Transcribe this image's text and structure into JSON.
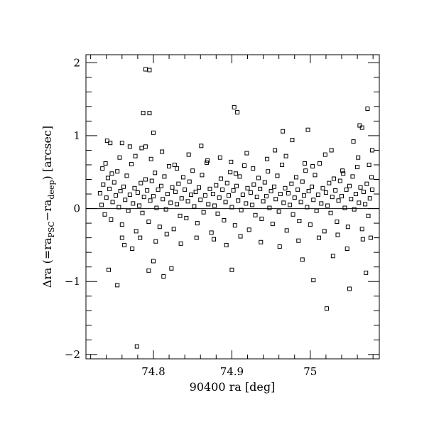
{
  "chart_data": {
    "type": "scatter",
    "title": "",
    "xlabel": "90400 ra [deg]",
    "ylabel": {
      "prefix": "Δra (=ra",
      "sub1": "PSC",
      "mid": "−ra",
      "sub2": "deep",
      "suffix": ") [arcsec]"
    },
    "xlim": [
      74.714,
      75.088
    ],
    "ylim": [
      -2.06,
      2.11
    ],
    "x_ticks": [
      {
        "value": 74.8,
        "label": "74.8"
      },
      {
        "value": 74.9,
        "label": "74.9"
      },
      {
        "value": 75.0,
        "label": "75"
      }
    ],
    "y_ticks": [
      {
        "value": -2,
        "label": "−2"
      },
      {
        "value": -1,
        "label": "−1"
      },
      {
        "value": 0,
        "label": "0"
      },
      {
        "value": 1,
        "label": "1"
      },
      {
        "value": 2,
        "label": "2"
      }
    ],
    "x_minor_step": 0.02,
    "y_minor_step": 0.2,
    "reference_line_y": 0,
    "marker": "open-square",
    "grid": false,
    "colors": {
      "marker": "#000000",
      "axes": "#000000",
      "background": "#ffffff"
    },
    "points": [
      [
        74.79,
        1.91
      ],
      [
        74.795,
        1.9
      ],
      [
        74.787,
        1.31
      ],
      [
        74.795,
        1.31
      ],
      [
        74.8,
        1.04
      ],
      [
        74.903,
        1.39
      ],
      [
        74.907,
        1.32
      ],
      [
        75.073,
        1.37
      ],
      [
        75.063,
        1.14
      ],
      [
        75.066,
        1.11
      ],
      [
        74.997,
        1.08
      ],
      [
        74.965,
        1.06
      ],
      [
        74.779,
        -1.89
      ],
      [
        74.754,
        -1.05
      ],
      [
        75.021,
        -1.37
      ],
      [
        75.05,
        -1.1
      ],
      [
        75.004,
        -0.98
      ],
      [
        75.071,
        -0.88
      ],
      [
        75.029,
        -0.65
      ],
      [
        74.743,
        -0.84
      ],
      [
        74.794,
        -0.85
      ],
      [
        74.9,
        -0.84
      ],
      [
        74.813,
        -0.93
      ],
      [
        74.8,
        -0.72
      ],
      [
        74.823,
        -0.82
      ],
      [
        74.99,
        -0.7
      ],
      [
        74.741,
        0.93
      ],
      [
        74.745,
        0.9
      ],
      [
        74.76,
        0.9
      ],
      [
        74.77,
        0.85
      ],
      [
        74.785,
        0.83
      ],
      [
        74.79,
        0.85
      ],
      [
        74.732,
        0.21
      ],
      [
        74.734,
        0.05
      ],
      [
        74.736,
        0.33
      ],
      [
        74.738,
        -0.08
      ],
      [
        74.74,
        0.15
      ],
      [
        74.742,
        0.42
      ],
      [
        74.744,
        0.27
      ],
      [
        74.746,
        -0.15
      ],
      [
        74.748,
        0.09
      ],
      [
        74.75,
        0.36
      ],
      [
        74.752,
        0.18
      ],
      [
        74.754,
        0.51
      ],
      [
        74.756,
        0.02
      ],
      [
        74.758,
        0.24
      ],
      [
        74.76,
        -0.22
      ],
      [
        74.762,
        0.3
      ],
      [
        74.764,
        0.12
      ],
      [
        74.766,
        0.45
      ],
      [
        74.768,
        -0.03
      ],
      [
        74.77,
        0.19
      ],
      [
        74.772,
        0.61
      ],
      [
        74.774,
        0.07
      ],
      [
        74.776,
        0.28
      ],
      [
        74.778,
        -0.31
      ],
      [
        74.78,
        0.22
      ],
      [
        74.782,
        0.04
      ],
      [
        74.784,
        0.35
      ],
      [
        74.786,
        -0.06
      ],
      [
        74.788,
        0.16
      ],
      [
        74.79,
        0.4
      ],
      [
        74.792,
        0.25
      ],
      [
        74.794,
        -0.18
      ],
      [
        74.796,
        0.11
      ],
      [
        74.798,
        0.38
      ],
      [
        74.8,
        0.17
      ],
      [
        74.802,
        0.49
      ],
      [
        74.804,
        0.01
      ],
      [
        74.806,
        0.26
      ],
      [
        74.808,
        -0.25
      ],
      [
        74.81,
        0.31
      ],
      [
        74.812,
        0.13
      ],
      [
        74.814,
        0.44
      ],
      [
        74.816,
        -0.01
      ],
      [
        74.818,
        0.2
      ],
      [
        74.82,
        0.58
      ],
      [
        74.822,
        0.08
      ],
      [
        74.824,
        0.29
      ],
      [
        74.826,
        -0.28
      ],
      [
        74.828,
        0.23
      ],
      [
        74.83,
        0.06
      ],
      [
        74.832,
        0.34
      ],
      [
        74.834,
        -0.1
      ],
      [
        74.836,
        0.14
      ],
      [
        74.838,
        0.43
      ],
      [
        74.84,
        0.26
      ],
      [
        74.842,
        -0.13
      ],
      [
        74.844,
        0.1
      ],
      [
        74.846,
        0.37
      ],
      [
        74.848,
        0.19
      ],
      [
        74.85,
        0.52
      ],
      [
        74.852,
        0.03
      ],
      [
        74.854,
        0.23
      ],
      [
        74.856,
        -0.2
      ],
      [
        74.858,
        0.29
      ],
      [
        74.86,
        0.12
      ],
      [
        74.862,
        0.46
      ],
      [
        74.864,
        -0.05
      ],
      [
        74.866,
        0.18
      ],
      [
        74.868,
        0.63
      ],
      [
        74.87,
        0.06
      ],
      [
        74.872,
        0.27
      ],
      [
        74.874,
        -0.33
      ],
      [
        74.876,
        0.2
      ],
      [
        74.878,
        0.04
      ],
      [
        74.88,
        0.32
      ],
      [
        74.882,
        -0.07
      ],
      [
        74.884,
        0.15
      ],
      [
        74.886,
        0.41
      ],
      [
        74.888,
        0.26
      ],
      [
        74.89,
        -0.16
      ],
      [
        74.892,
        0.09
      ],
      [
        74.894,
        0.35
      ],
      [
        74.896,
        0.18
      ],
      [
        74.898,
        0.5
      ],
      [
        74.9,
        0.02
      ],
      [
        74.902,
        0.25
      ],
      [
        74.904,
        -0.23
      ],
      [
        74.906,
        0.31
      ],
      [
        74.908,
        0.11
      ],
      [
        74.91,
        0.44
      ],
      [
        74.912,
        -0.02
      ],
      [
        74.914,
        0.19
      ],
      [
        74.916,
        0.59
      ],
      [
        74.918,
        0.07
      ],
      [
        74.92,
        0.28
      ],
      [
        74.922,
        -0.29
      ],
      [
        74.924,
        0.22
      ],
      [
        74.926,
        0.05
      ],
      [
        74.928,
        0.33
      ],
      [
        74.93,
        -0.09
      ],
      [
        74.932,
        0.16
      ],
      [
        74.934,
        0.42
      ],
      [
        74.936,
        0.27
      ],
      [
        74.938,
        -0.14
      ],
      [
        74.94,
        0.1
      ],
      [
        74.942,
        0.36
      ],
      [
        74.944,
        0.17
      ],
      [
        74.946,
        0.51
      ],
      [
        74.948,
        0.01
      ],
      [
        74.95,
        0.24
      ],
      [
        74.952,
        -0.21
      ],
      [
        74.954,
        0.3
      ],
      [
        74.956,
        0.13
      ],
      [
        74.958,
        0.45
      ],
      [
        74.96,
        -0.04
      ],
      [
        74.962,
        0.2
      ],
      [
        74.964,
        0.6
      ],
      [
        74.966,
        0.08
      ],
      [
        74.968,
        0.28
      ],
      [
        74.97,
        -0.3
      ],
      [
        74.972,
        0.21
      ],
      [
        74.974,
        0.05
      ],
      [
        74.976,
        0.34
      ],
      [
        74.978,
        -0.08
      ],
      [
        74.98,
        0.15
      ],
      [
        74.982,
        0.43
      ],
      [
        74.984,
        0.26
      ],
      [
        74.986,
        -0.17
      ],
      [
        74.988,
        0.09
      ],
      [
        74.99,
        0.37
      ],
      [
        74.992,
        0.18
      ],
      [
        74.994,
        0.52
      ],
      [
        74.996,
        0.02
      ],
      [
        74.998,
        0.24
      ],
      [
        75.0,
        -0.22
      ],
      [
        75.002,
        0.3
      ],
      [
        75.004,
        0.12
      ],
      [
        75.006,
        0.46
      ],
      [
        75.008,
        -0.03
      ],
      [
        75.01,
        0.19
      ],
      [
        75.012,
        0.62
      ],
      [
        75.014,
        0.07
      ],
      [
        75.016,
        0.28
      ],
      [
        75.018,
        -0.31
      ],
      [
        75.02,
        0.22
      ],
      [
        75.022,
        0.04
      ],
      [
        75.024,
        0.35
      ],
      [
        75.026,
        -0.06
      ],
      [
        75.028,
        0.16
      ],
      [
        75.03,
        0.41
      ],
      [
        75.032,
        0.25
      ],
      [
        75.034,
        -0.18
      ],
      [
        75.036,
        0.11
      ],
      [
        75.038,
        0.38
      ],
      [
        75.04,
        0.17
      ],
      [
        75.042,
        0.48
      ],
      [
        75.044,
        0.01
      ],
      [
        75.046,
        0.26
      ],
      [
        75.048,
        -0.25
      ],
      [
        75.05,
        0.31
      ],
      [
        75.052,
        0.13
      ],
      [
        75.054,
        0.44
      ],
      [
        75.056,
        -0.01
      ],
      [
        75.058,
        0.2
      ],
      [
        75.06,
        0.57
      ],
      [
        75.062,
        0.08
      ],
      [
        75.064,
        0.29
      ],
      [
        75.066,
        -0.28
      ],
      [
        75.068,
        0.23
      ],
      [
        75.07,
        0.06
      ],
      [
        75.072,
        0.34
      ],
      [
        75.074,
        -0.1
      ],
      [
        75.076,
        0.14
      ],
      [
        75.078,
        0.43
      ],
      [
        75.079,
        0.26
      ],
      [
        75.077,
        -0.4
      ],
      [
        74.735,
        0.55
      ],
      [
        74.739,
        0.62
      ],
      [
        74.747,
        0.48
      ],
      [
        74.757,
        0.7
      ],
      [
        74.763,
        -0.5
      ],
      [
        74.773,
        -0.55
      ],
      [
        74.777,
        0.72
      ],
      [
        74.783,
        -0.4
      ],
      [
        74.797,
        0.68
      ],
      [
        74.803,
        -0.45
      ],
      [
        74.811,
        0.78
      ],
      [
        74.817,
        -0.35
      ],
      [
        74.827,
        0.6
      ],
      [
        74.835,
        -0.48
      ],
      [
        74.845,
        0.74
      ],
      [
        74.855,
        -0.4
      ],
      [
        74.861,
        0.86
      ],
      [
        74.869,
        0.66
      ],
      [
        74.877,
        -0.42
      ],
      [
        74.885,
        0.7
      ],
      [
        74.893,
        -0.5
      ],
      [
        74.899,
        0.64
      ],
      [
        74.911,
        -0.38
      ],
      [
        74.919,
        0.76
      ],
      [
        74.927,
        0.55
      ],
      [
        74.937,
        -0.46
      ],
      [
        74.945,
        0.68
      ],
      [
        74.955,
        0.8
      ],
      [
        74.961,
        -0.52
      ],
      [
        74.969,
        0.72
      ],
      [
        74.977,
        0.94
      ],
      [
        74.985,
        -0.44
      ],
      [
        74.993,
        0.62
      ],
      [
        75.003,
        0.58
      ],
      [
        75.011,
        -0.4
      ],
      [
        75.019,
        0.74
      ],
      [
        75.027,
        0.8
      ],
      [
        75.035,
        -0.36
      ],
      [
        75.041,
        0.52
      ],
      [
        75.047,
        -0.55
      ],
      [
        75.055,
        0.92
      ],
      [
        75.061,
        0.7
      ],
      [
        75.067,
        -0.42
      ],
      [
        75.075,
        0.6
      ],
      [
        75.079,
        0.8
      ],
      [
        74.76,
        -0.4
      ],
      [
        74.83,
        0.55
      ],
      [
        74.905,
        0.48
      ]
    ]
  }
}
